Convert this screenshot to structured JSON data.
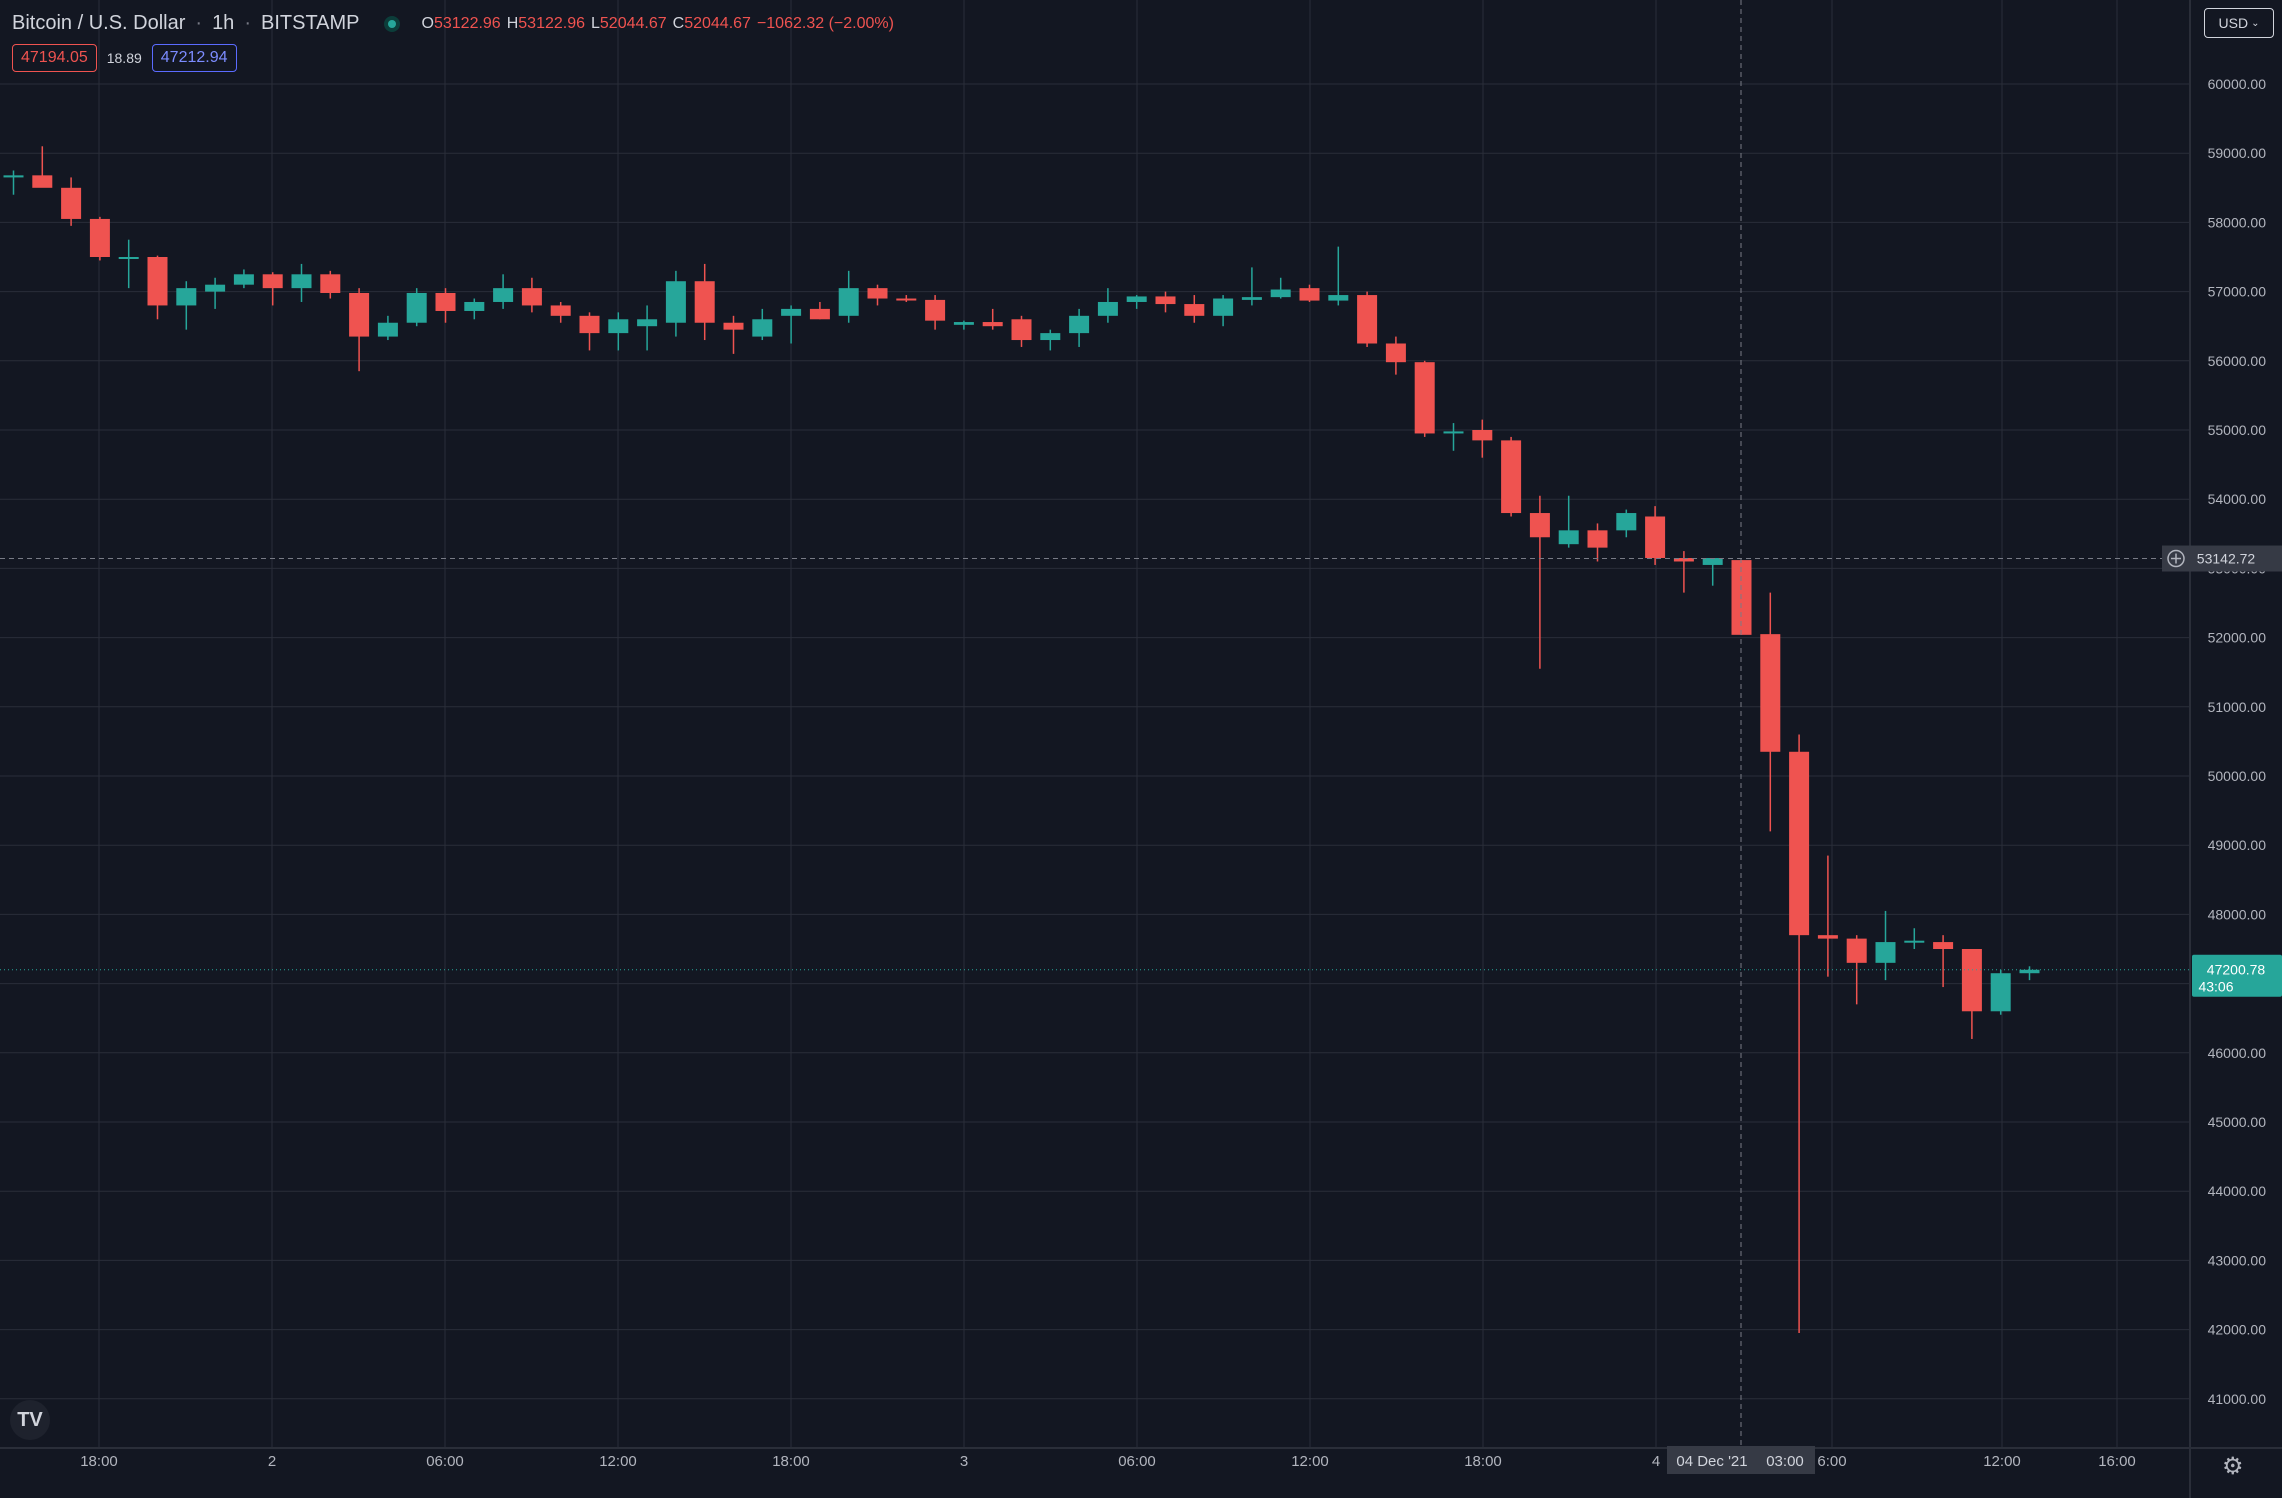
{
  "header": {
    "symbol": "Bitcoin / U.S. Dollar",
    "interval": "1h",
    "exchange": "BITSTAMP",
    "ohlc": {
      "o_label": "O",
      "o": "53122.96",
      "h_label": "H",
      "h": "53122.96",
      "l_label": "L",
      "l": "52044.67",
      "c_label": "C",
      "c": "52044.67",
      "change": "−1062.32 (−2.00%)"
    },
    "sell_price": "47194.05",
    "spread": "18.89",
    "buy_price": "47212.94"
  },
  "currency_button": "USD",
  "logo_text": "TV",
  "colors": {
    "background": "#131722",
    "grid": "#2a2e39",
    "up": "#26a69a",
    "down": "#ef5350",
    "text": "#d1d4dc"
  },
  "chart_data": {
    "type": "candlestick",
    "timeframe": "1h",
    "ylim": [
      40200,
      61000
    ],
    "y_ticks": [
      41000,
      42000,
      43000,
      44000,
      45000,
      46000,
      47000,
      48000,
      49000,
      50000,
      51000,
      52000,
      53000,
      54000,
      55000,
      56000,
      57000,
      58000,
      59000,
      60000
    ],
    "x_tick_labels": [
      "18:00",
      "2",
      "06:00",
      "12:00",
      "18:00",
      "3",
      "06:00",
      "12:00",
      "18:00",
      "4",
      "6:00",
      "12:00",
      "16:00"
    ],
    "crosshair": {
      "price_label": "53142.72",
      "time_label": "04 Dec '21",
      "time_label2": "03:00"
    },
    "last_price": {
      "price": "47200.78",
      "countdown": "43:06"
    },
    "candles": [
      {
        "o": 58650,
        "h": 58750,
        "l": 58400,
        "c": 58680
      },
      {
        "o": 58680,
        "h": 59100,
        "l": 58550,
        "c": 58500
      },
      {
        "o": 58500,
        "h": 58650,
        "l": 57950,
        "c": 58050
      },
      {
        "o": 58050,
        "h": 58080,
        "l": 57450,
        "c": 57500
      },
      {
        "o": 57480,
        "h": 57750,
        "l": 57050,
        "c": 57500
      },
      {
        "o": 57500,
        "h": 57520,
        "l": 56600,
        "c": 56800
      },
      {
        "o": 56800,
        "h": 57150,
        "l": 56450,
        "c": 57050
      },
      {
        "o": 57000,
        "h": 57200,
        "l": 56750,
        "c": 57100
      },
      {
        "o": 57100,
        "h": 57320,
        "l": 57050,
        "c": 57250
      },
      {
        "o": 57250,
        "h": 57280,
        "l": 56800,
        "c": 57050
      },
      {
        "o": 57050,
        "h": 57400,
        "l": 56850,
        "c": 57250
      },
      {
        "o": 57250,
        "h": 57300,
        "l": 56900,
        "c": 56980
      },
      {
        "o": 56980,
        "h": 57050,
        "l": 55850,
        "c": 56350
      },
      {
        "o": 56350,
        "h": 56650,
        "l": 56300,
        "c": 56550
      },
      {
        "o": 56550,
        "h": 57050,
        "l": 56500,
        "c": 56980
      },
      {
        "o": 56980,
        "h": 57050,
        "l": 56550,
        "c": 56720
      },
      {
        "o": 56720,
        "h": 56900,
        "l": 56600,
        "c": 56850
      },
      {
        "o": 56850,
        "h": 57250,
        "l": 56750,
        "c": 57050
      },
      {
        "o": 57050,
        "h": 57200,
        "l": 56700,
        "c": 56800
      },
      {
        "o": 56800,
        "h": 56850,
        "l": 56550,
        "c": 56650
      },
      {
        "o": 56650,
        "h": 56700,
        "l": 56150,
        "c": 56400
      },
      {
        "o": 56400,
        "h": 56700,
        "l": 56150,
        "c": 56600
      },
      {
        "o": 56500,
        "h": 56800,
        "l": 56150,
        "c": 56600
      },
      {
        "o": 56550,
        "h": 57300,
        "l": 56350,
        "c": 57150
      },
      {
        "o": 57150,
        "h": 57400,
        "l": 56300,
        "c": 56550
      },
      {
        "o": 56550,
        "h": 56650,
        "l": 56100,
        "c": 56450
      },
      {
        "o": 56350,
        "h": 56750,
        "l": 56300,
        "c": 56600
      },
      {
        "o": 56650,
        "h": 56800,
        "l": 56250,
        "c": 56750
      },
      {
        "o": 56750,
        "h": 56850,
        "l": 56600,
        "c": 56600
      },
      {
        "o": 56650,
        "h": 57300,
        "l": 56550,
        "c": 57050
      },
      {
        "o": 57050,
        "h": 57100,
        "l": 56800,
        "c": 56900
      },
      {
        "o": 56900,
        "h": 56950,
        "l": 56850,
        "c": 56880
      },
      {
        "o": 56880,
        "h": 56950,
        "l": 56450,
        "c": 56580
      },
      {
        "o": 56520,
        "h": 56580,
        "l": 56450,
        "c": 56560
      },
      {
        "o": 56560,
        "h": 56750,
        "l": 56450,
        "c": 56500
      },
      {
        "o": 56600,
        "h": 56650,
        "l": 56200,
        "c": 56300
      },
      {
        "o": 56300,
        "h": 56450,
        "l": 56150,
        "c": 56400
      },
      {
        "o": 56400,
        "h": 56750,
        "l": 56200,
        "c": 56650
      },
      {
        "o": 56650,
        "h": 57050,
        "l": 56550,
        "c": 56850
      },
      {
        "o": 56850,
        "h": 56950,
        "l": 56750,
        "c": 56930
      },
      {
        "o": 56930,
        "h": 57000,
        "l": 56700,
        "c": 56820
      },
      {
        "o": 56820,
        "h": 56950,
        "l": 56550,
        "c": 56650
      },
      {
        "o": 56650,
        "h": 56950,
        "l": 56500,
        "c": 56900
      },
      {
        "o": 56880,
        "h": 57350,
        "l": 56800,
        "c": 56920
      },
      {
        "o": 56920,
        "h": 57200,
        "l": 56900,
        "c": 57030
      },
      {
        "o": 57050,
        "h": 57100,
        "l": 56850,
        "c": 56870
      },
      {
        "o": 56870,
        "h": 57650,
        "l": 56800,
        "c": 56950
      },
      {
        "o": 56950,
        "h": 57000,
        "l": 56200,
        "c": 56250
      },
      {
        "o": 56250,
        "h": 56350,
        "l": 55800,
        "c": 55980
      },
      {
        "o": 55980,
        "h": 56000,
        "l": 54900,
        "c": 54950
      },
      {
        "o": 54950,
        "h": 55100,
        "l": 54700,
        "c": 54980
      },
      {
        "o": 55000,
        "h": 55150,
        "l": 54600,
        "c": 54850
      },
      {
        "o": 54850,
        "h": 54900,
        "l": 53750,
        "c": 53800
      },
      {
        "o": 53800,
        "h": 54050,
        "l": 51550,
        "c": 53450
      },
      {
        "o": 53350,
        "h": 54050,
        "l": 53300,
        "c": 53550
      },
      {
        "o": 53550,
        "h": 53650,
        "l": 53100,
        "c": 53300
      },
      {
        "o": 53550,
        "h": 53850,
        "l": 53450,
        "c": 53800
      },
      {
        "o": 53750,
        "h": 53900,
        "l": 53050,
        "c": 53150
      },
      {
        "o": 53150,
        "h": 53250,
        "l": 52650,
        "c": 53100
      },
      {
        "o": 53050,
        "h": 53150,
        "l": 52750,
        "c": 53150
      },
      {
        "o": 53120,
        "h": 53120,
        "l": 52040,
        "c": 52040
      },
      {
        "o": 52050,
        "h": 52650,
        "l": 49200,
        "c": 50350
      },
      {
        "o": 50350,
        "h": 50600,
        "l": 41950,
        "c": 47700
      },
      {
        "o": 47700,
        "h": 48850,
        "l": 47100,
        "c": 47650
      },
      {
        "o": 47650,
        "h": 47700,
        "l": 46700,
        "c": 47300
      },
      {
        "o": 47300,
        "h": 48050,
        "l": 47050,
        "c": 47600
      },
      {
        "o": 47600,
        "h": 47800,
        "l": 47500,
        "c": 47620
      },
      {
        "o": 47600,
        "h": 47700,
        "l": 46950,
        "c": 47500
      },
      {
        "o": 47500,
        "h": 47450,
        "l": 46200,
        "c": 46600
      },
      {
        "o": 46600,
        "h": 47200,
        "l": 46550,
        "c": 47150
      },
      {
        "o": 47150,
        "h": 47250,
        "l": 47050,
        "c": 47200
      }
    ]
  }
}
